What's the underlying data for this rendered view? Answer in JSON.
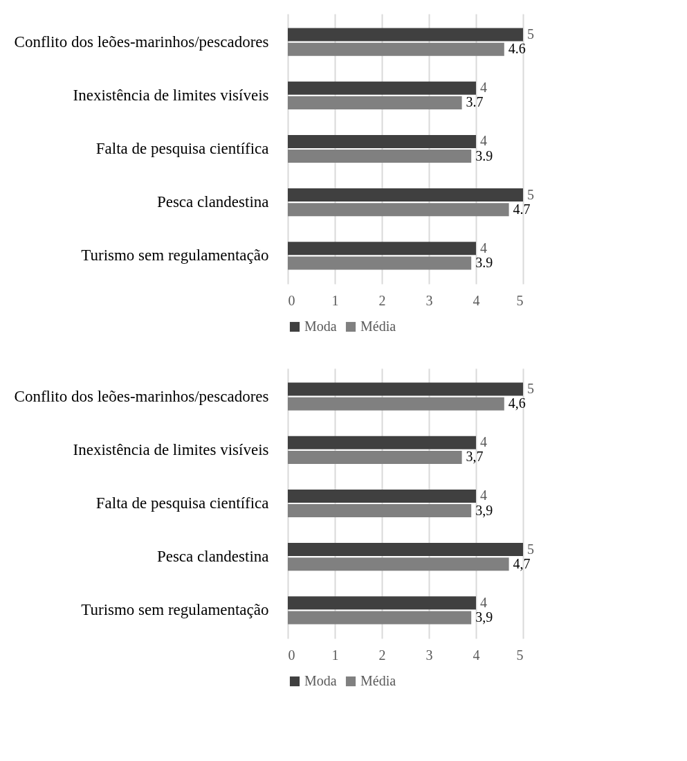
{
  "chart_data": [
    {
      "type": "bar",
      "orientation": "horizontal",
      "categories": [
        "Conflito dos leões-marinhos/pescadores",
        "Inexistência de limites visíveis",
        "Falta de pesquisa científica",
        "Pesca clandestina",
        "Turismo sem regulamentação"
      ],
      "series": [
        {
          "name": "Moda",
          "color": "#404040",
          "values": [
            5,
            4,
            4,
            5,
            4
          ],
          "value_labels": [
            "5",
            "4",
            "4",
            "5",
            "4"
          ]
        },
        {
          "name": "Média",
          "color": "#808080",
          "values": [
            4.6,
            3.7,
            3.9,
            4.7,
            3.9
          ],
          "value_labels": [
            "4.6",
            "3.7",
            "3.9",
            "4.7",
            "3.9"
          ]
        }
      ],
      "xlim": [
        0,
        5
      ],
      "xticks": [
        0,
        1,
        2,
        3,
        4,
        5
      ],
      "grid": "x",
      "legend": "bottom"
    },
    {
      "type": "bar",
      "orientation": "horizontal",
      "categories": [
        "Conflito dos leões-marinhos/pescadores",
        "Inexistência de limites visíveis",
        "Falta de pesquisa científica",
        "Pesca clandestina",
        "Turismo sem regulamentação"
      ],
      "series": [
        {
          "name": "Moda",
          "color": "#404040",
          "values": [
            5,
            4,
            4,
            5,
            4
          ],
          "value_labels": [
            "5",
            "4",
            "4",
            "5",
            "4"
          ]
        },
        {
          "name": "Média",
          "color": "#808080",
          "values": [
            4.6,
            3.7,
            3.9,
            4.7,
            3.9
          ],
          "value_labels": [
            "4,6",
            "3,7",
            "3,9",
            "4,7",
            "3,9"
          ]
        }
      ],
      "xlim": [
        0,
        5
      ],
      "xticks": [
        0,
        1,
        2,
        3,
        4,
        5
      ],
      "grid": "x",
      "legend": "bottom"
    }
  ]
}
